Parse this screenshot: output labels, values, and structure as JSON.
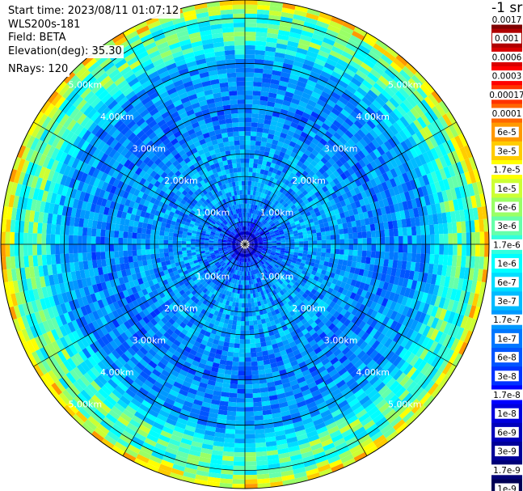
{
  "info": {
    "start_time": "Start time: 2023/08/11 01:07:12",
    "instrument": "WLS200s-181",
    "field": "Field: BETA",
    "elevation": "Elevation(deg): 35.30",
    "nrays": "NRays: 120"
  },
  "chart_data": {
    "type": "heatmap",
    "projection": "polar (PPI scan)",
    "field": "BETA",
    "elevation_deg": 35.3,
    "n_rays": 120,
    "range_unit": "km",
    "range_max_km": 5.4,
    "range_ring_labels": [
      "1.00km",
      "2.00km",
      "3.00km",
      "4.00km",
      "5.00km"
    ],
    "range_rings_km": [
      1,
      2,
      3,
      4,
      5
    ],
    "spokes_deg": [
      0,
      30,
      60,
      90,
      120,
      150,
      180,
      210,
      240,
      270,
      300,
      330
    ],
    "colorbar": {
      "units": "-1 sr",
      "scale": "log",
      "range": [
        1e-09,
        0.0017
      ],
      "ticks": [
        "0.0017",
        "0.001",
        "0.0006",
        "0.0003",
        "0.00017",
        "0.0001",
        "6e-5",
        "3e-5",
        "1.7e-5",
        "1e-5",
        "6e-6",
        "3e-6",
        "1.7e-6",
        "1e-6",
        "6e-7",
        "3e-7",
        "1.7e-7",
        "1e-7",
        "6e-8",
        "3e-8",
        "1.7e-8",
        "1e-8",
        "6e-9",
        "3e-9",
        "1.7e-9",
        "1e-9"
      ],
      "colors": [
        "#800000",
        "#b00000",
        "#d80000",
        "#ff0000",
        "#ff3300",
        "#ff6600",
        "#ff9900",
        "#ffcc00",
        "#ffff00",
        "#ccff33",
        "#99ff66",
        "#66ffaa",
        "#33ffdd",
        "#00ffff",
        "#00ddff",
        "#00bbff",
        "#0099ff",
        "#0077ff",
        "#0055ff",
        "#0033ff",
        "#0000ff",
        "#0000dd",
        "#0000bb",
        "#000099",
        "#000077",
        "#000055"
      ]
    },
    "radial_profile": {
      "range_km": [
        0.2,
        0.5,
        1.0,
        1.2,
        1.5,
        2.0,
        2.5,
        3.0,
        3.5,
        4.0,
        4.3,
        4.7,
        5.0,
        5.3
      ],
      "typical_value": [
        6e-09,
        6e-08,
        1e-07,
        2e-07,
        1.5e-07,
        1.7e-07,
        1.2e-07,
        1e-07,
        1.3e-07,
        1.5e-07,
        4e-07,
        3e-06,
        1e-06,
        1.7e-05
      ]
    }
  }
}
